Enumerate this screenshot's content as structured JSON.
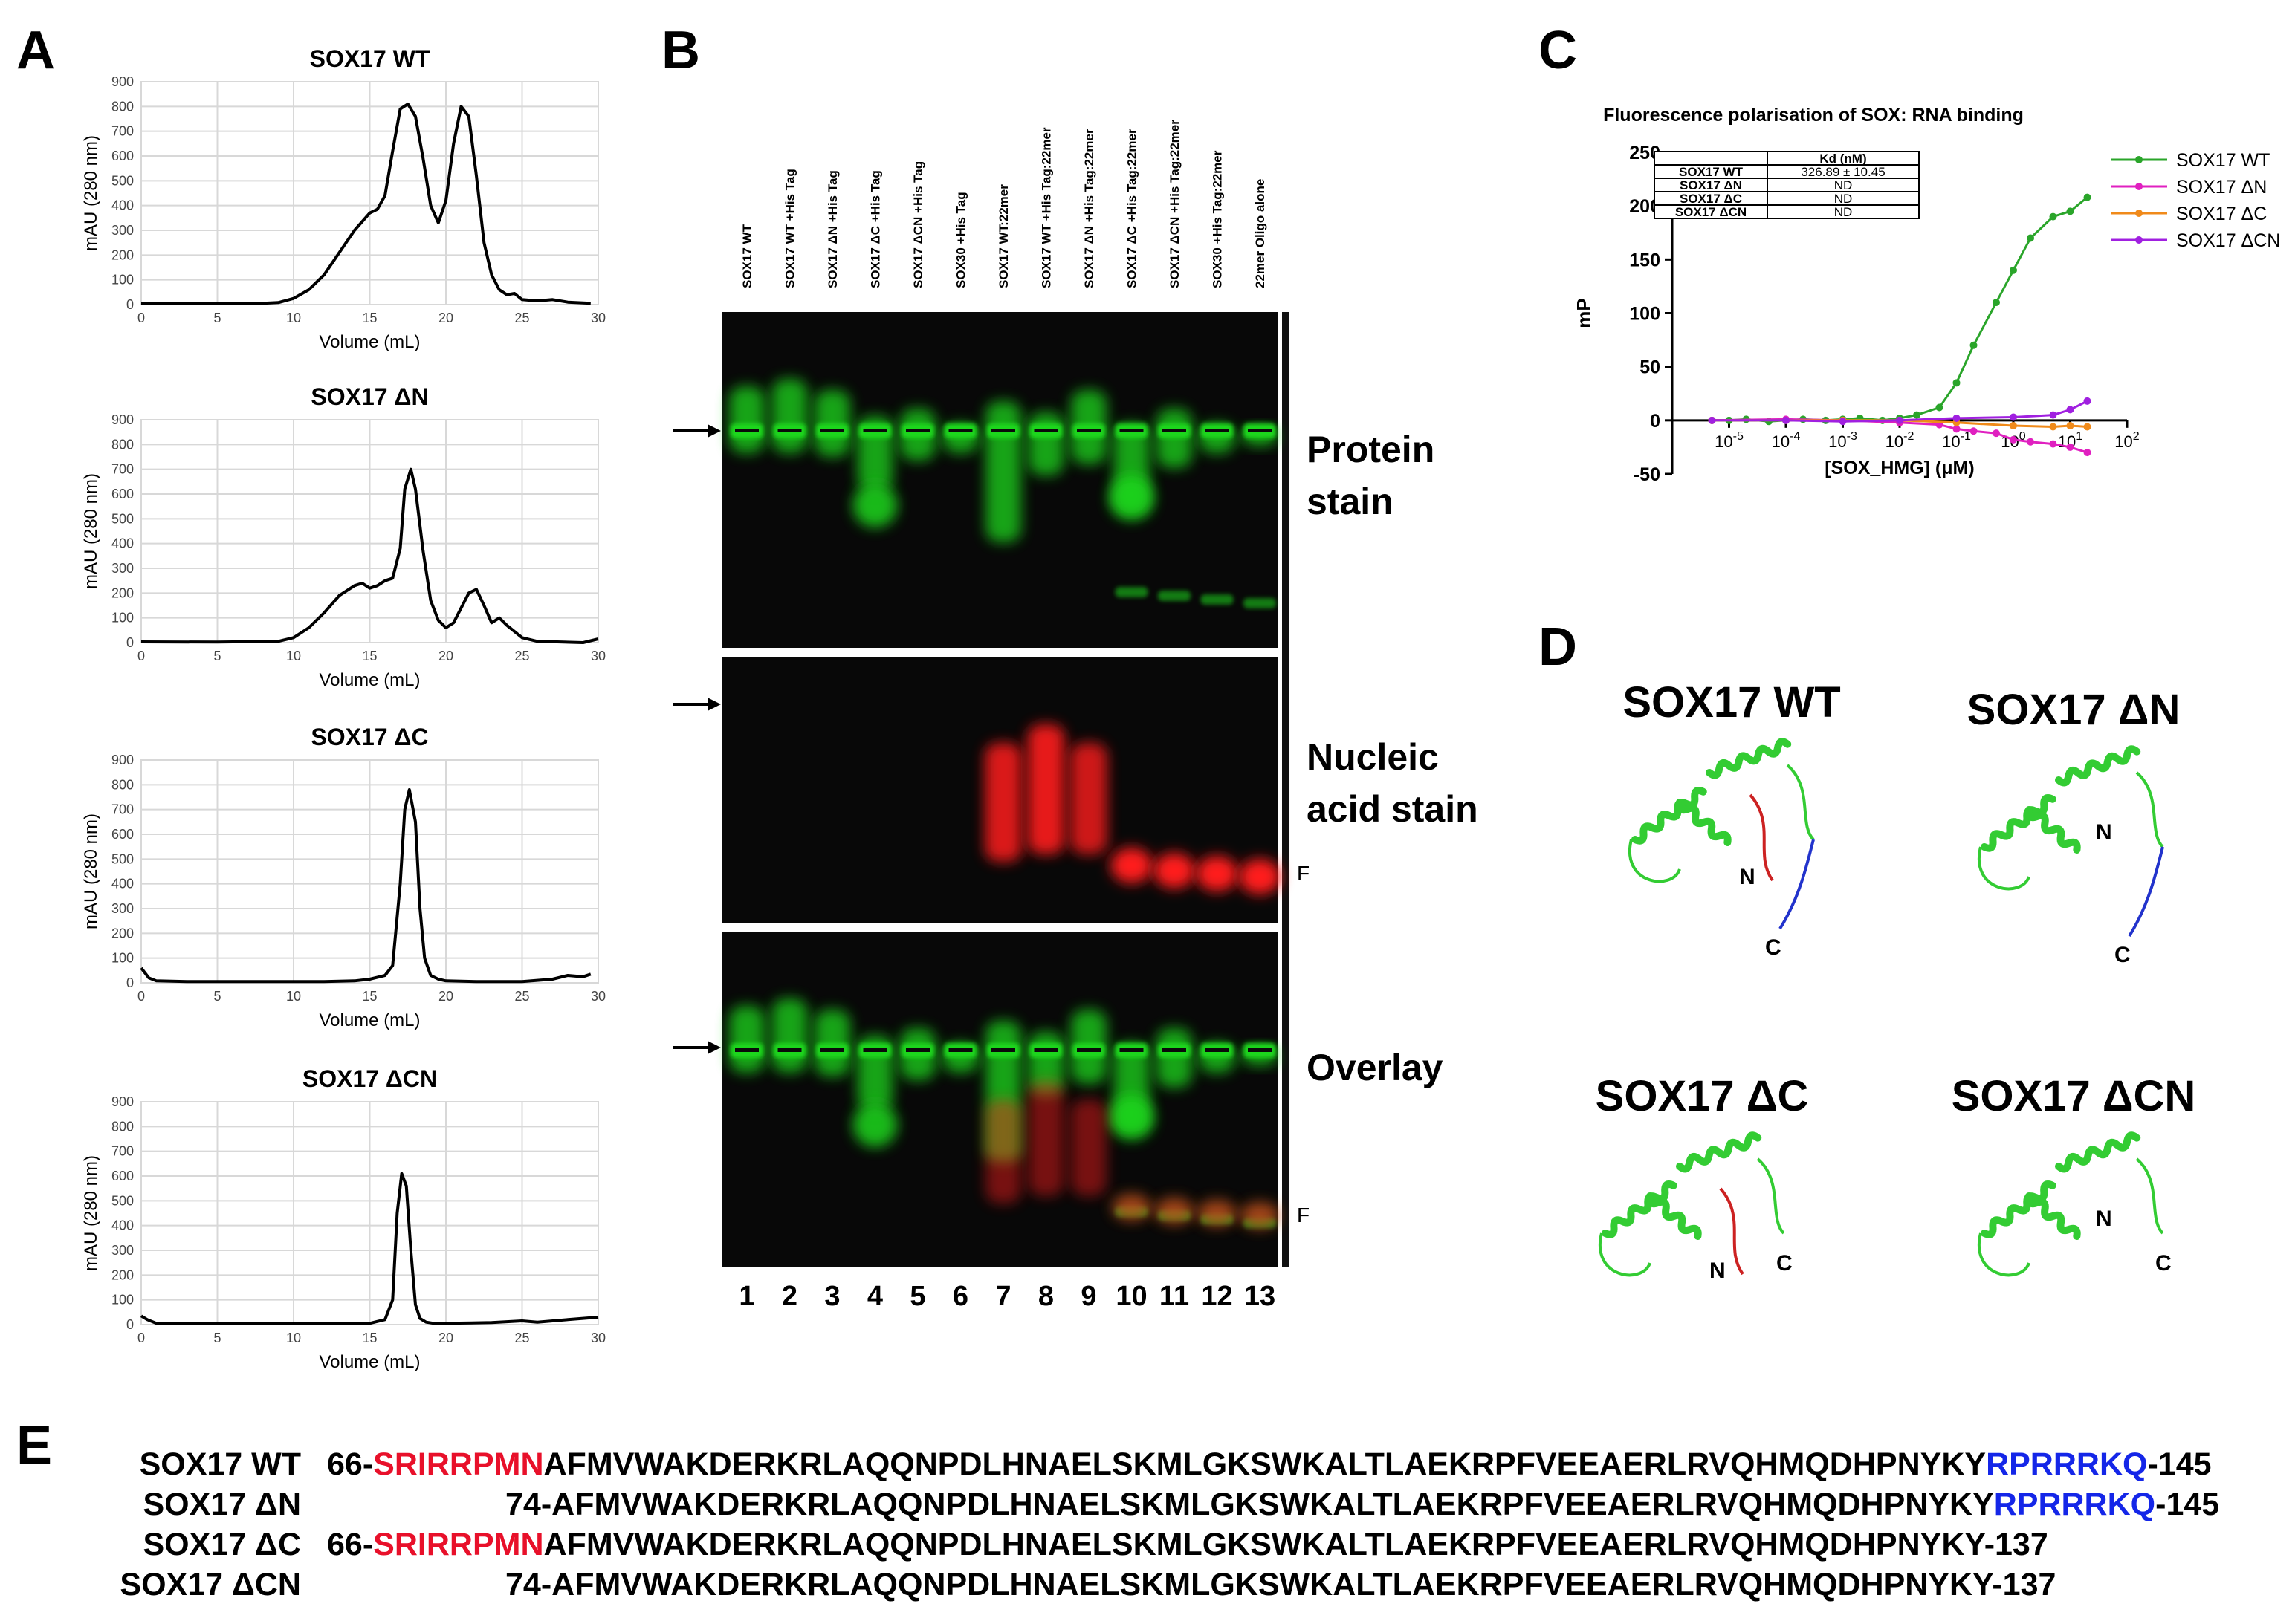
{
  "figure": {
    "panel_labels": [
      "A",
      "B",
      "C",
      "D",
      "E"
    ]
  },
  "panelA": {
    "charts": [
      {
        "title": "SOX17 WT"
      },
      {
        "title": "SOX17 ΔN"
      },
      {
        "title": "SOX17 ΔC"
      },
      {
        "title": "SOX17 ΔCN"
      }
    ]
  },
  "chart_data": [
    {
      "type": "line",
      "title": "SOX17 WT",
      "xlabel": "Volume (mL)",
      "ylabel": "mAU (280 nm)",
      "xlim": [
        0,
        30
      ],
      "ylim": [
        0,
        900
      ],
      "xticks": [
        0,
        5,
        10,
        15,
        20,
        25,
        30
      ],
      "yticks": [
        0,
        100,
        200,
        300,
        400,
        500,
        600,
        700,
        800,
        900
      ],
      "grid": true,
      "x": [
        0,
        5,
        8,
        9,
        10,
        11,
        12,
        13,
        14,
        15,
        15.5,
        16,
        16.5,
        17,
        17.5,
        18,
        18.5,
        19,
        19.5,
        20,
        20.5,
        21,
        21.5,
        22,
        22.5,
        23,
        23.5,
        24,
        24.5,
        25,
        26,
        27,
        28,
        29.5
      ],
      "values": [
        5,
        3,
        5,
        8,
        25,
        60,
        120,
        210,
        300,
        370,
        385,
        440,
        620,
        790,
        810,
        760,
        590,
        400,
        330,
        420,
        650,
        800,
        760,
        520,
        250,
        120,
        60,
        40,
        45,
        20,
        15,
        20,
        10,
        5
      ]
    },
    {
      "type": "line",
      "title": "SOX17 ΔN",
      "xlabel": "Volume (mL)",
      "ylabel": "mAU (280 nm)",
      "xlim": [
        0,
        30
      ],
      "ylim": [
        0,
        900
      ],
      "xticks": [
        0,
        5,
        10,
        15,
        20,
        25,
        30
      ],
      "yticks": [
        0,
        100,
        200,
        300,
        400,
        500,
        600,
        700,
        800,
        900
      ],
      "grid": true,
      "x": [
        0,
        5,
        9,
        10,
        11,
        12,
        13,
        14,
        14.5,
        15,
        15.5,
        16,
        16.5,
        17,
        17.3,
        17.7,
        18,
        18.5,
        19,
        19.5,
        20,
        20.5,
        21,
        21.5,
        22,
        22.5,
        23,
        23.5,
        24,
        25,
        26,
        29,
        30
      ],
      "values": [
        3,
        2,
        5,
        20,
        60,
        120,
        190,
        230,
        240,
        220,
        230,
        250,
        260,
        380,
        620,
        700,
        620,
        370,
        170,
        90,
        60,
        80,
        140,
        200,
        215,
        150,
        80,
        100,
        70,
        20,
        5,
        0,
        15
      ]
    },
    {
      "type": "line",
      "title": "SOX17 ΔC",
      "xlabel": "Volume (mL)",
      "ylabel": "mAU (280 nm)",
      "xlim": [
        0,
        30
      ],
      "ylim": [
        0,
        900
      ],
      "xticks": [
        0,
        5,
        10,
        15,
        20,
        25,
        30
      ],
      "yticks": [
        0,
        100,
        200,
        300,
        400,
        500,
        600,
        700,
        800,
        900
      ],
      "grid": true,
      "x": [
        0,
        0.5,
        1,
        3,
        8,
        12,
        14,
        15,
        16,
        16.5,
        17,
        17.3,
        17.6,
        18,
        18.3,
        18.6,
        19,
        19.5,
        20,
        22,
        25,
        27,
        28,
        29,
        29.5
      ],
      "values": [
        60,
        20,
        8,
        5,
        5,
        5,
        8,
        15,
        30,
        70,
        400,
        700,
        780,
        650,
        300,
        100,
        30,
        15,
        8,
        5,
        5,
        15,
        30,
        25,
        35
      ]
    },
    {
      "type": "line",
      "title": "SOX17 ΔCN",
      "xlabel": "Volume (mL)",
      "ylabel": "mAU (280 nm)",
      "xlim": [
        0,
        30
      ],
      "ylim": [
        0,
        900
      ],
      "xticks": [
        0,
        5,
        10,
        15,
        20,
        25,
        30
      ],
      "yticks": [
        0,
        100,
        200,
        300,
        400,
        500,
        600,
        700,
        800,
        900
      ],
      "grid": true,
      "x": [
        0,
        0.4,
        1,
        3,
        10,
        15,
        16,
        16.5,
        16.8,
        17.1,
        17.4,
        17.7,
        18,
        18.3,
        18.7,
        19.2,
        20,
        23,
        25,
        26,
        28,
        30
      ],
      "values": [
        35,
        20,
        5,
        3,
        3,
        5,
        20,
        100,
        450,
        610,
        560,
        300,
        80,
        25,
        10,
        5,
        5,
        8,
        15,
        10,
        20,
        30
      ]
    },
    {
      "type": "scatter",
      "title": "Fluorescence polarisation of SOX: RNA binding",
      "xlabel": "[SOX_HMG] (μM)",
      "ylabel": "mP",
      "xscale": "log",
      "ylim": [
        -50,
        250
      ],
      "yticks": [
        -50,
        0,
        50,
        100,
        150,
        200,
        250
      ],
      "xtick_labels": [
        "10-5",
        "10-4",
        "10-3",
        "10-2",
        "10-1",
        "100",
        "101",
        "102"
      ],
      "legend": "right",
      "series": [
        {
          "name": "SOX17 WT",
          "color": "#2aa52a",
          "x": [
            5e-06,
            1e-05,
            2e-05,
            5e-05,
            0.0001,
            0.0002,
            0.0005,
            0.001,
            0.002,
            0.005,
            0.01,
            0.02,
            0.05,
            0.1,
            0.2,
            0.5,
            1,
            2,
            5,
            10,
            20
          ],
          "values": [
            0,
            0,
            1,
            -1,
            0,
            1,
            0,
            1,
            2,
            0,
            2,
            5,
            12,
            35,
            70,
            110,
            140,
            170,
            190,
            195,
            208
          ]
        },
        {
          "name": "SOX17 ΔN",
          "color": "#e020c0",
          "x": [
            5e-06,
            0.0001,
            0.001,
            0.01,
            0.05,
            0.1,
            0.2,
            0.5,
            1,
            2,
            5,
            10,
            20
          ],
          "values": [
            0,
            1,
            0,
            -2,
            -4,
            -8,
            -10,
            -12,
            -18,
            -20,
            -22,
            -25,
            -30
          ]
        },
        {
          "name": "SOX17 ΔC",
          "color": "#f08a1a",
          "x": [
            5e-06,
            0.0001,
            0.001,
            0.01,
            0.1,
            1,
            5,
            10,
            20
          ],
          "values": [
            0,
            0,
            0,
            0,
            -2,
            -5,
            -6,
            -5,
            -6
          ]
        },
        {
          "name": "SOX17 ΔCN",
          "color": "#a020e0",
          "x": [
            5e-06,
            0.0001,
            0.001,
            0.01,
            0.1,
            1,
            5,
            10,
            20
          ],
          "values": [
            0,
            0,
            -1,
            0,
            2,
            3,
            5,
            10,
            18
          ]
        }
      ]
    }
  ],
  "panelB": {
    "lane_labels": [
      "SOX17 WT",
      "SOX17 WT +His Tag",
      "SOX17 ΔN +His Tag",
      "SOX17 ΔC +His Tag",
      "SOX17 ΔCN +His Tag",
      "SOX30 +His Tag",
      "SOX17 WT:22mer",
      "SOX17 WT +His Tag:22mer",
      "SOX17 ΔN +His Tag:22mer",
      "SOX17 ΔC +His Tag:22mer",
      "SOX17 ΔCN +His Tag:22mer",
      "SOX30 +His Tag:22mer",
      "22mer Oligo alone"
    ],
    "lane_numbers": [
      "1",
      "2",
      "3",
      "4",
      "5",
      "6",
      "7",
      "8",
      "9",
      "10",
      "11",
      "12",
      "13"
    ],
    "gel_labels": {
      "protein_line1": "Protein",
      "protein_line2": "stain",
      "nucleic_line1": "Nucleic",
      "nucleic_line2": "acid stain",
      "overlay": "Overlay",
      "free_marker": "F"
    },
    "colors": {
      "protein": "#1fd81f",
      "nucleic": "#ff1a1a",
      "background": "#080808"
    }
  },
  "panelC": {
    "table_header": [
      "",
      "Kd (nM)"
    ],
    "table_rows": [
      [
        "SOX17 WT",
        "326.89 ± 10.45"
      ],
      [
        "SOX17 ΔN",
        "ND"
      ],
      [
        "SOX17 ΔC",
        "ND"
      ],
      [
        "SOX17 ΔCN",
        "ND"
      ]
    ]
  },
  "panelD": {
    "structures": [
      {
        "title": "SOX17 WT",
        "n_label": "N",
        "c_label": "C"
      },
      {
        "title": "SOX17 ΔN",
        "n_label": "N",
        "c_label": "C"
      },
      {
        "title": "SOX17 ΔC",
        "n_label": "N",
        "c_label": "C"
      },
      {
        "title": "SOX17 ΔCN",
        "n_label": "N",
        "c_label": "C"
      }
    ],
    "colors": {
      "helix": "#33cc33",
      "n_tail": "#cc2222",
      "c_tail": "#2233cc"
    }
  },
  "panelE": {
    "rows": [
      {
        "name": "SOX17 WT",
        "prefix": "66-",
        "red": "SRIRRPMN",
        "core": "AFMVWAKDERKRLAQQNPDLHNAELSKMLGKSWKALTLAEKRPFVEEAERLRVQHMQDHPNYKY",
        "blue": "RPRRRKQ",
        "suffix": "-145"
      },
      {
        "name": "SOX17 ΔN",
        "prefix": "",
        "red": "",
        "core": "74-AFMVWAKDERKRLAQQNPDLHNAELSKMLGKSWKALTLAEKRPFVEEAERLRVQHMQDHPNYKY",
        "blue": "RPRRRKQ",
        "suffix": "-145"
      },
      {
        "name": "SOX17 ΔC",
        "prefix": "66-",
        "red": "SRIRRPMN",
        "core": "AFMVWAKDERKRLAQQNPDLHNAELSKMLGKSWKALTLAEKRPFVEEAERLRVQHMQDHPNYKY",
        "blue": "",
        "suffix": "-137"
      },
      {
        "name": "SOX17 ΔCN",
        "prefix": "",
        "red": "",
        "core": "74-AFMVWAKDERKRLAQQNPDLHNAELSKMLGKSWKALTLAEKRPFVEEAERLRVQHMQDHPNYKY",
        "blue": "",
        "suffix": "-137"
      }
    ]
  }
}
